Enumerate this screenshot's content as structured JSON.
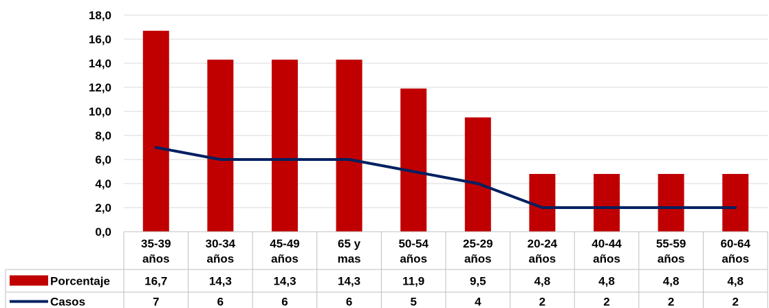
{
  "chart_data": {
    "type": "bar+line",
    "categories": [
      [
        "35-39",
        "años"
      ],
      [
        "30-34",
        "años"
      ],
      [
        "45-49",
        "años"
      ],
      [
        "65 y",
        "mas"
      ],
      [
        "50-54",
        "años"
      ],
      [
        "25-29",
        "años"
      ],
      [
        "20-24",
        "años"
      ],
      [
        "40-44",
        "años"
      ],
      [
        "55-59",
        "años"
      ],
      [
        "60-64",
        "años"
      ]
    ],
    "series": [
      {
        "name": "Porcentaje",
        "type": "bar",
        "color": "#C00000",
        "values": [
          16.7,
          14.3,
          14.3,
          14.3,
          11.9,
          9.5,
          4.8,
          4.8,
          4.8,
          4.8
        ],
        "labels": [
          "16,7",
          "14,3",
          "14,3",
          "14,3",
          "11,9",
          "9,5",
          "4,8",
          "4,8",
          "4,8",
          "4,8"
        ]
      },
      {
        "name": "Casos",
        "type": "line",
        "color": "#002060",
        "values": [
          7,
          6,
          6,
          6,
          5,
          4,
          2,
          2,
          2,
          2
        ],
        "labels": [
          "7",
          "6",
          "6",
          "6",
          "5",
          "4",
          "2",
          "2",
          "2",
          "2"
        ]
      }
    ],
    "ylim": [
      0,
      18
    ],
    "yticks": [
      "0,0",
      "2,0",
      "4,0",
      "6,0",
      "8,0",
      "10,0",
      "12,0",
      "14,0",
      "16,0",
      "18,0"
    ],
    "grid": true,
    "legend": "data-table-left"
  }
}
